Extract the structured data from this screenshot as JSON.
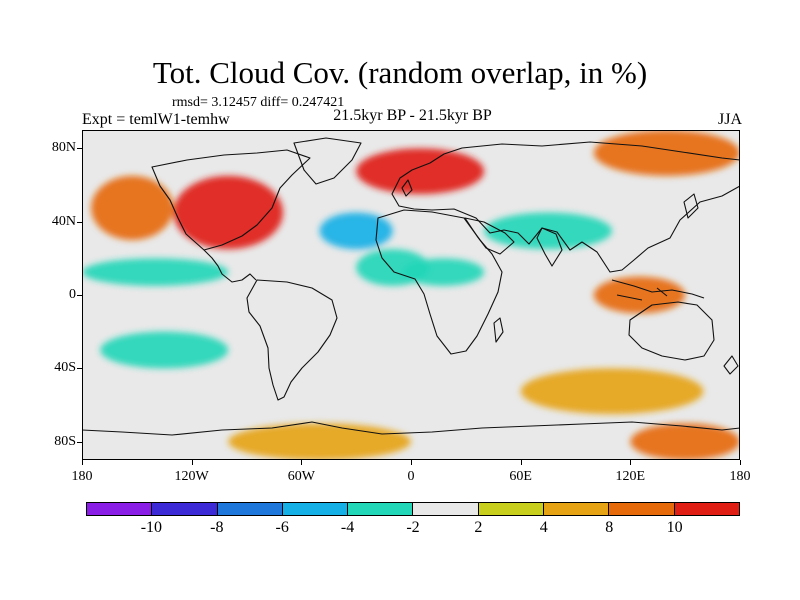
{
  "title": "Tot. Cloud Cov. (random overlap, in %)",
  "stats_line": "rmsd= 3.12457 diff= 0.247421",
  "experiment_label": "Expt = temlW1-temhw",
  "period_label": "21.5kyr BP - 21.5kyr BP",
  "season_label": "JJA",
  "chart_data": {
    "type": "heatmap",
    "title": "Tot. Cloud Cov. (random overlap, in %)",
    "projection": "cylindrical equidistant",
    "lon_range": [
      -180,
      180
    ],
    "lat_range": [
      -90,
      90
    ],
    "lat_ticks": [
      {
        "value": 80,
        "label": "80N"
      },
      {
        "value": 40,
        "label": "40N"
      },
      {
        "value": 0,
        "label": "0"
      },
      {
        "value": -40,
        "label": "40S"
      },
      {
        "value": -80,
        "label": "80S"
      }
    ],
    "lon_ticks": [
      {
        "value": -180,
        "label": "180"
      },
      {
        "value": -120,
        "label": "120W"
      },
      {
        "value": -60,
        "label": "60W"
      },
      {
        "value": 0,
        "label": "0"
      },
      {
        "value": 60,
        "label": "60E"
      },
      {
        "value": 120,
        "label": "120E"
      },
      {
        "value": 180,
        "label": "180"
      }
    ],
    "colorbar": {
      "levels": [
        "-10",
        "-8",
        "-6",
        "-4",
        "-2",
        "2",
        "4",
        "8",
        "10"
      ],
      "colors": [
        "#8a1ee6",
        "#3c2ad6",
        "#1e78dc",
        "#14b0e6",
        "#22d6b8",
        "#e8e8e8",
        "#c8cf1c",
        "#e6a414",
        "#e66a0a",
        "#e01e14"
      ]
    },
    "regions": [
      {
        "name": "north-atlantic-arctic-positive",
        "value": 10,
        "lat": [
          55,
          80
        ],
        "lon": [
          -30,
          40
        ]
      },
      {
        "name": "north-america-positive",
        "value": 10,
        "lat": [
          25,
          65
        ],
        "lon": [
          -130,
          -70
        ]
      },
      {
        "name": "north-pacific-positive",
        "value": 8,
        "lat": [
          30,
          65
        ],
        "lon": [
          -175,
          -130
        ]
      },
      {
        "name": "arctic-siberia-positive",
        "value": 8,
        "lat": [
          65,
          90
        ],
        "lon": [
          100,
          180
        ]
      },
      {
        "name": "north-atlantic-negative",
        "value": -6,
        "lat": [
          25,
          45
        ],
        "lon": [
          -50,
          -10
        ]
      },
      {
        "name": "central-asia-negative",
        "value": -4,
        "lat": [
          25,
          45
        ],
        "lon": [
          40,
          110
        ]
      },
      {
        "name": "tropical-atlantic-negative",
        "value": -4,
        "lat": [
          5,
          25
        ],
        "lon": [
          -30,
          10
        ]
      },
      {
        "name": "north-africa-negative",
        "value": -4,
        "lat": [
          5,
          20
        ],
        "lon": [
          -5,
          40
        ]
      },
      {
        "name": "tropical-pacific-negative",
        "value": -4,
        "lat": [
          5,
          20
        ],
        "lon": [
          -180,
          -100
        ]
      },
      {
        "name": "maritime-continent-positive",
        "value": 8,
        "lat": [
          -10,
          10
        ],
        "lon": [
          100,
          150
        ]
      },
      {
        "name": "southern-ocean-positive",
        "value": 4,
        "lat": [
          -65,
          -40
        ],
        "lon": [
          60,
          160
        ]
      },
      {
        "name": "southern-pacific-negative",
        "value": -4,
        "lat": [
          -40,
          -20
        ],
        "lon": [
          -170,
          -100
        ]
      },
      {
        "name": "antarctica-positive",
        "value": 4,
        "lat": [
          -90,
          -70
        ],
        "lon": [
          -100,
          0
        ]
      },
      {
        "name": "east-antarctica-positive",
        "value": 8,
        "lat": [
          -90,
          -70
        ],
        "lon": [
          120,
          180
        ]
      }
    ]
  }
}
